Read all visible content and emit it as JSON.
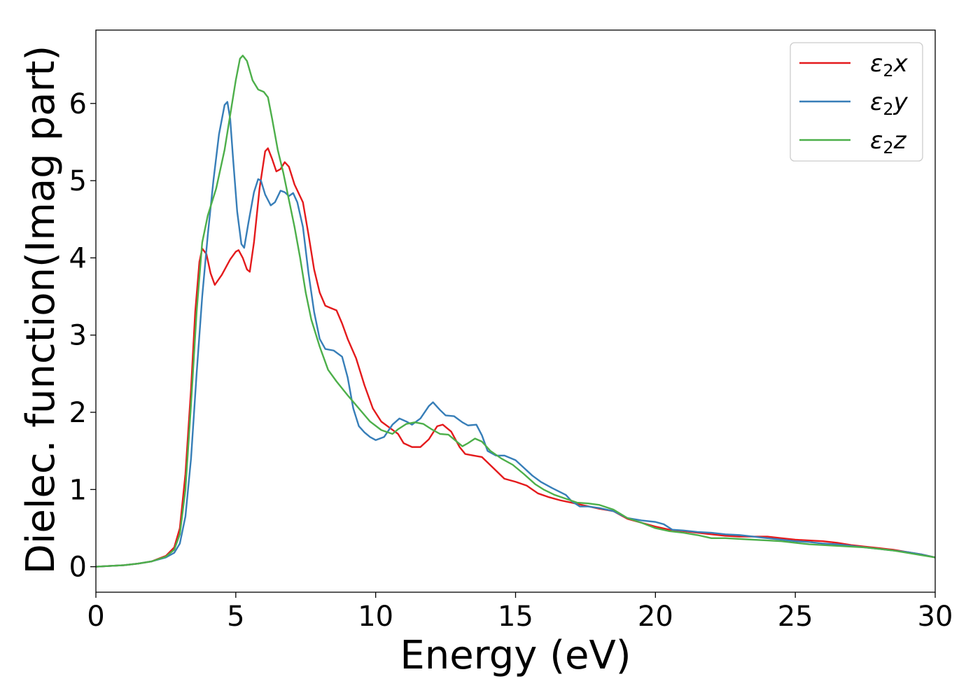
{
  "chart_data": {
    "type": "line",
    "xlabel": "Energy (eV)",
    "ylabel": "Dielec. function(Imag part)",
    "xlim": [
      0,
      30
    ],
    "ylim": [
      -0.33,
      6.95
    ],
    "x_ticks": [
      0,
      5,
      10,
      15,
      20,
      25,
      30
    ],
    "y_ticks": [
      0,
      1,
      2,
      3,
      4,
      5,
      6
    ],
    "grid": false,
    "legend_position": "top-right",
    "series": [
      {
        "name": "ε2x",
        "legend": {
          "base": "ε",
          "sub": "2",
          "var": "x"
        },
        "color": "#e41a1c",
        "points": [
          [
            0,
            0
          ],
          [
            1,
            0.02
          ],
          [
            1.5,
            0.04
          ],
          [
            2,
            0.07
          ],
          [
            2.5,
            0.14
          ],
          [
            2.8,
            0.25
          ],
          [
            3.0,
            0.5
          ],
          [
            3.2,
            1.2
          ],
          [
            3.4,
            2.3
          ],
          [
            3.55,
            3.3
          ],
          [
            3.7,
            3.95
          ],
          [
            3.8,
            4.12
          ],
          [
            3.95,
            4.05
          ],
          [
            4.1,
            3.8
          ],
          [
            4.25,
            3.65
          ],
          [
            4.5,
            3.78
          ],
          [
            4.8,
            3.98
          ],
          [
            5.0,
            4.08
          ],
          [
            5.1,
            4.1
          ],
          [
            5.25,
            4.0
          ],
          [
            5.4,
            3.85
          ],
          [
            5.5,
            3.82
          ],
          [
            5.65,
            4.2
          ],
          [
            5.85,
            4.9
          ],
          [
            6.05,
            5.38
          ],
          [
            6.15,
            5.42
          ],
          [
            6.3,
            5.28
          ],
          [
            6.45,
            5.12
          ],
          [
            6.6,
            5.15
          ],
          [
            6.75,
            5.24
          ],
          [
            6.9,
            5.18
          ],
          [
            7.1,
            4.95
          ],
          [
            7.4,
            4.72
          ],
          [
            7.6,
            4.3
          ],
          [
            7.8,
            3.85
          ],
          [
            8.0,
            3.55
          ],
          [
            8.2,
            3.38
          ],
          [
            8.4,
            3.35
          ],
          [
            8.6,
            3.32
          ],
          [
            8.8,
            3.15
          ],
          [
            9.0,
            2.95
          ],
          [
            9.3,
            2.7
          ],
          [
            9.6,
            2.35
          ],
          [
            9.9,
            2.05
          ],
          [
            10.2,
            1.88
          ],
          [
            10.5,
            1.8
          ],
          [
            10.8,
            1.72
          ],
          [
            11.0,
            1.6
          ],
          [
            11.3,
            1.55
          ],
          [
            11.6,
            1.55
          ],
          [
            11.9,
            1.65
          ],
          [
            12.2,
            1.82
          ],
          [
            12.4,
            1.84
          ],
          [
            12.7,
            1.75
          ],
          [
            13.0,
            1.55
          ],
          [
            13.2,
            1.46
          ],
          [
            13.5,
            1.44
          ],
          [
            13.8,
            1.42
          ],
          [
            14.2,
            1.28
          ],
          [
            14.6,
            1.14
          ],
          [
            15.0,
            1.1
          ],
          [
            15.4,
            1.05
          ],
          [
            15.8,
            0.95
          ],
          [
            16.2,
            0.9
          ],
          [
            16.6,
            0.86
          ],
          [
            17.0,
            0.83
          ],
          [
            17.5,
            0.79
          ],
          [
            18.0,
            0.75
          ],
          [
            18.5,
            0.72
          ],
          [
            19.0,
            0.62
          ],
          [
            19.5,
            0.57
          ],
          [
            20.0,
            0.52
          ],
          [
            20.5,
            0.48
          ],
          [
            21.0,
            0.46
          ],
          [
            21.5,
            0.44
          ],
          [
            22.0,
            0.42
          ],
          [
            22.5,
            0.4
          ],
          [
            23.0,
            0.39
          ],
          [
            23.5,
            0.39
          ],
          [
            24.0,
            0.39
          ],
          [
            24.5,
            0.37
          ],
          [
            25.0,
            0.35
          ],
          [
            25.5,
            0.34
          ],
          [
            26.0,
            0.33
          ],
          [
            26.5,
            0.31
          ],
          [
            27.0,
            0.28
          ],
          [
            27.5,
            0.26
          ],
          [
            28.0,
            0.24
          ],
          [
            28.5,
            0.22
          ],
          [
            29.0,
            0.19
          ],
          [
            29.5,
            0.16
          ],
          [
            30,
            0.12
          ]
        ]
      },
      {
        "name": "ε2y",
        "legend": {
          "base": "ε",
          "sub": "2",
          "var": "y"
        },
        "color": "#377eb8",
        "points": [
          [
            0,
            0
          ],
          [
            1,
            0.02
          ],
          [
            1.5,
            0.04
          ],
          [
            2,
            0.07
          ],
          [
            2.5,
            0.12
          ],
          [
            2.8,
            0.18
          ],
          [
            3.0,
            0.3
          ],
          [
            3.2,
            0.65
          ],
          [
            3.4,
            1.4
          ],
          [
            3.6,
            2.5
          ],
          [
            3.8,
            3.5
          ],
          [
            4.0,
            4.3
          ],
          [
            4.2,
            5.0
          ],
          [
            4.4,
            5.6
          ],
          [
            4.6,
            5.98
          ],
          [
            4.7,
            6.02
          ],
          [
            4.8,
            5.8
          ],
          [
            4.9,
            5.3
          ],
          [
            5.05,
            4.6
          ],
          [
            5.2,
            4.18
          ],
          [
            5.3,
            4.13
          ],
          [
            5.45,
            4.45
          ],
          [
            5.65,
            4.85
          ],
          [
            5.8,
            5.02
          ],
          [
            5.9,
            5.0
          ],
          [
            6.05,
            4.82
          ],
          [
            6.25,
            4.68
          ],
          [
            6.4,
            4.72
          ],
          [
            6.6,
            4.87
          ],
          [
            6.75,
            4.85
          ],
          [
            6.9,
            4.8
          ],
          [
            7.05,
            4.84
          ],
          [
            7.2,
            4.72
          ],
          [
            7.4,
            4.4
          ],
          [
            7.6,
            3.8
          ],
          [
            7.8,
            3.3
          ],
          [
            8.0,
            2.95
          ],
          [
            8.2,
            2.82
          ],
          [
            8.5,
            2.8
          ],
          [
            8.8,
            2.72
          ],
          [
            9.0,
            2.45
          ],
          [
            9.2,
            2.05
          ],
          [
            9.4,
            1.82
          ],
          [
            9.6,
            1.74
          ],
          [
            9.8,
            1.68
          ],
          [
            10.0,
            1.64
          ],
          [
            10.3,
            1.68
          ],
          [
            10.6,
            1.84
          ],
          [
            10.85,
            1.92
          ],
          [
            11.1,
            1.88
          ],
          [
            11.3,
            1.84
          ],
          [
            11.6,
            1.92
          ],
          [
            11.9,
            2.08
          ],
          [
            12.05,
            2.13
          ],
          [
            12.3,
            2.03
          ],
          [
            12.5,
            1.96
          ],
          [
            12.8,
            1.95
          ],
          [
            13.1,
            1.87
          ],
          [
            13.3,
            1.83
          ],
          [
            13.6,
            1.84
          ],
          [
            13.8,
            1.7
          ],
          [
            14.0,
            1.5
          ],
          [
            14.3,
            1.44
          ],
          [
            14.6,
            1.44
          ],
          [
            15.0,
            1.38
          ],
          [
            15.3,
            1.28
          ],
          [
            15.6,
            1.18
          ],
          [
            15.9,
            1.1
          ],
          [
            16.3,
            1.02
          ],
          [
            16.8,
            0.93
          ],
          [
            17.0,
            0.85
          ],
          [
            17.3,
            0.78
          ],
          [
            17.6,
            0.78
          ],
          [
            18.0,
            0.76
          ],
          [
            18.5,
            0.72
          ],
          [
            19.0,
            0.63
          ],
          [
            19.5,
            0.6
          ],
          [
            20.0,
            0.58
          ],
          [
            20.3,
            0.55
          ],
          [
            20.6,
            0.48
          ],
          [
            21.0,
            0.47
          ],
          [
            21.5,
            0.45
          ],
          [
            22.0,
            0.44
          ],
          [
            22.5,
            0.42
          ],
          [
            23.0,
            0.41
          ],
          [
            23.5,
            0.39
          ],
          [
            24.0,
            0.37
          ],
          [
            24.5,
            0.35
          ],
          [
            25.0,
            0.33
          ],
          [
            25.5,
            0.32
          ],
          [
            26.0,
            0.3
          ],
          [
            26.5,
            0.29
          ],
          [
            27.0,
            0.27
          ],
          [
            27.5,
            0.25
          ],
          [
            28.0,
            0.23
          ],
          [
            28.5,
            0.21
          ],
          [
            29.0,
            0.19
          ],
          [
            29.5,
            0.16
          ],
          [
            30,
            0.12
          ]
        ]
      },
      {
        "name": "ε2z",
        "legend": {
          "base": "ε",
          "sub": "2",
          "var": "z"
        },
        "color": "#4daf4a",
        "points": [
          [
            0,
            0
          ],
          [
            1,
            0.02
          ],
          [
            1.5,
            0.04
          ],
          [
            2,
            0.07
          ],
          [
            2.5,
            0.13
          ],
          [
            2.8,
            0.22
          ],
          [
            3.0,
            0.42
          ],
          [
            3.2,
            1.0
          ],
          [
            3.4,
            2.1
          ],
          [
            3.6,
            3.3
          ],
          [
            3.8,
            4.2
          ],
          [
            4.0,
            4.55
          ],
          [
            4.3,
            4.9
          ],
          [
            4.6,
            5.4
          ],
          [
            4.8,
            5.85
          ],
          [
            5.0,
            6.3
          ],
          [
            5.15,
            6.58
          ],
          [
            5.25,
            6.62
          ],
          [
            5.4,
            6.55
          ],
          [
            5.6,
            6.3
          ],
          [
            5.8,
            6.18
          ],
          [
            6.0,
            6.15
          ],
          [
            6.15,
            6.08
          ],
          [
            6.3,
            5.8
          ],
          [
            6.5,
            5.4
          ],
          [
            6.7,
            5.1
          ],
          [
            6.9,
            4.75
          ],
          [
            7.1,
            4.4
          ],
          [
            7.3,
            4.0
          ],
          [
            7.5,
            3.55
          ],
          [
            7.7,
            3.2
          ],
          [
            8.0,
            2.85
          ],
          [
            8.3,
            2.55
          ],
          [
            8.6,
            2.4
          ],
          [
            9.0,
            2.22
          ],
          [
            9.4,
            2.05
          ],
          [
            9.8,
            1.88
          ],
          [
            10.2,
            1.77
          ],
          [
            10.6,
            1.72
          ],
          [
            10.8,
            1.78
          ],
          [
            11.1,
            1.85
          ],
          [
            11.4,
            1.87
          ],
          [
            11.7,
            1.85
          ],
          [
            12.0,
            1.78
          ],
          [
            12.3,
            1.72
          ],
          [
            12.6,
            1.71
          ],
          [
            12.9,
            1.62
          ],
          [
            13.1,
            1.56
          ],
          [
            13.3,
            1.6
          ],
          [
            13.55,
            1.66
          ],
          [
            13.8,
            1.62
          ],
          [
            14.1,
            1.5
          ],
          [
            14.5,
            1.4
          ],
          [
            14.9,
            1.32
          ],
          [
            15.3,
            1.2
          ],
          [
            15.7,
            1.07
          ],
          [
            16.0,
            1.0
          ],
          [
            16.4,
            0.93
          ],
          [
            16.8,
            0.88
          ],
          [
            17.2,
            0.83
          ],
          [
            17.6,
            0.82
          ],
          [
            18.0,
            0.8
          ],
          [
            18.5,
            0.74
          ],
          [
            19.0,
            0.63
          ],
          [
            19.5,
            0.57
          ],
          [
            20.0,
            0.5
          ],
          [
            20.5,
            0.46
          ],
          [
            21.0,
            0.44
          ],
          [
            21.5,
            0.41
          ],
          [
            22.0,
            0.37
          ],
          [
            22.5,
            0.37
          ],
          [
            23.0,
            0.36
          ],
          [
            23.5,
            0.35
          ],
          [
            24.0,
            0.34
          ],
          [
            24.5,
            0.33
          ],
          [
            25.0,
            0.31
          ],
          [
            25.5,
            0.29
          ],
          [
            26.0,
            0.28
          ],
          [
            26.5,
            0.27
          ],
          [
            27.0,
            0.26
          ],
          [
            27.5,
            0.25
          ],
          [
            28.0,
            0.23
          ],
          [
            28.5,
            0.21
          ],
          [
            29.0,
            0.18
          ],
          [
            29.5,
            0.15
          ],
          [
            30,
            0.12
          ]
        ]
      }
    ]
  }
}
